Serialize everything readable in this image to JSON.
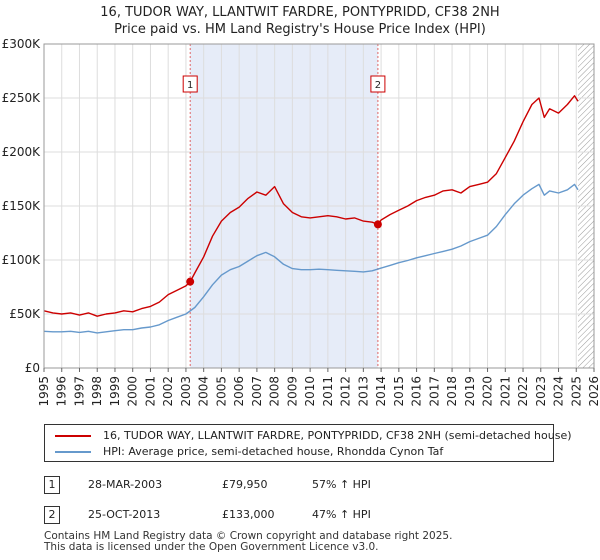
{
  "chart_data": {
    "type": "line",
    "title": "16, TUDOR WAY, LLANTWIT FARDRE, PONTYPRIDD, CF38 2NH",
    "subtitle": "Price paid vs. HM Land Registry's House Price Index (HPI)",
    "xlabel": "",
    "ylabel": "",
    "xlim": [
      1995,
      2026
    ],
    "ylim": [
      0,
      300000
    ],
    "x_ticks": [
      "1995",
      "1996",
      "1997",
      "1998",
      "1999",
      "2000",
      "2001",
      "2002",
      "2003",
      "2004",
      "2005",
      "2006",
      "2007",
      "2008",
      "2009",
      "2010",
      "2011",
      "2012",
      "2013",
      "2014",
      "2015",
      "2016",
      "2017",
      "2018",
      "2019",
      "2020",
      "2021",
      "2022",
      "2023",
      "2024",
      "2025",
      "2026"
    ],
    "y_ticks": [
      {
        "value": 0,
        "label": "£0"
      },
      {
        "value": 50000,
        "label": "£50K"
      },
      {
        "value": 100000,
        "label": "£100K"
      },
      {
        "value": 150000,
        "label": "£150K"
      },
      {
        "value": 200000,
        "label": "£200K"
      },
      {
        "value": 250000,
        "label": "£250K"
      },
      {
        "value": 300000,
        "label": "£300K"
      }
    ],
    "grid": true,
    "shaded_period": [
      2003.24,
      2013.82
    ],
    "future_hatch_from": 2025.1,
    "series": [
      {
        "name": "16, TUDOR WAY, LLANTWIT FARDRE, PONTYPRIDD, CF38 2NH (semi-detached house)",
        "color": "#cc0000",
        "x": [
          1995,
          1995.5,
          1996,
          1996.5,
          1997,
          1997.5,
          1998,
          1998.5,
          1999,
          1999.5,
          2000,
          2000.5,
          2001,
          2001.5,
          2002,
          2002.5,
          2003,
          2003.24,
          2003.5,
          2004,
          2004.5,
          2005,
          2005.5,
          2006,
          2006.5,
          2007,
          2007.5,
          2008,
          2008.5,
          2009,
          2009.5,
          2010,
          2010.5,
          2011,
          2011.5,
          2012,
          2012.5,
          2013,
          2013.5,
          2013.82,
          2014,
          2014.5,
          2015,
          2015.5,
          2016,
          2016.5,
          2017,
          2017.5,
          2018,
          2018.5,
          2019,
          2019.5,
          2020,
          2020.5,
          2021,
          2021.5,
          2022,
          2022.5,
          2022.9,
          2023.2,
          2023.5,
          2024,
          2024.5,
          2024.9,
          2025.1
        ],
        "values": [
          53000,
          51000,
          50000,
          51000,
          49000,
          51000,
          48000,
          50000,
          51000,
          53000,
          52000,
          55000,
          57000,
          61000,
          68000,
          72000,
          76000,
          79950,
          88000,
          103000,
          122000,
          136000,
          144000,
          149000,
          157000,
          163000,
          160000,
          168000,
          152000,
          144000,
          140000,
          139000,
          140000,
          141000,
          140000,
          138000,
          139000,
          136000,
          135000,
          133000,
          137000,
          142000,
          146000,
          150000,
          155000,
          158000,
          160000,
          164000,
          165000,
          162000,
          168000,
          170000,
          172000,
          180000,
          195000,
          210000,
          228000,
          244000,
          250000,
          232000,
          240000,
          236000,
          244000,
          252000,
          247000
        ]
      },
      {
        "name": "HPI: Average price, semi-detached house, Rhondda Cynon Taf",
        "color": "#6699cc",
        "x": [
          1995,
          1995.5,
          1996,
          1996.5,
          1997,
          1997.5,
          1998,
          1998.5,
          1999,
          1999.5,
          2000,
          2000.5,
          2001,
          2001.5,
          2002,
          2002.5,
          2003,
          2003.5,
          2004,
          2004.5,
          2005,
          2005.5,
          2006,
          2006.5,
          2007,
          2007.5,
          2008,
          2008.5,
          2009,
          2009.5,
          2010,
          2010.5,
          2011,
          2011.5,
          2012,
          2012.5,
          2013,
          2013.5,
          2014,
          2014.5,
          2015,
          2015.5,
          2016,
          2016.5,
          2017,
          2017.5,
          2018,
          2018.5,
          2019,
          2019.5,
          2020,
          2020.5,
          2021,
          2021.5,
          2022,
          2022.5,
          2022.9,
          2023.2,
          2023.5,
          2024,
          2024.5,
          2024.9,
          2025.1
        ],
        "values": [
          34000,
          33500,
          33500,
          34000,
          33000,
          34000,
          32500,
          33500,
          34500,
          35500,
          35500,
          37000,
          38000,
          40000,
          44000,
          47000,
          50000,
          56000,
          66000,
          77000,
          86000,
          91000,
          94000,
          99000,
          104000,
          107000,
          103000,
          96000,
          92000,
          91000,
          91000,
          91500,
          91000,
          90500,
          90000,
          89500,
          89000,
          90000,
          92500,
          95000,
          97500,
          99500,
          102000,
          104000,
          106000,
          108000,
          110000,
          113000,
          117000,
          120000,
          123000,
          131000,
          142000,
          152000,
          160000,
          166000,
          170000,
          160000,
          164000,
          162000,
          165000,
          170000,
          165000
        ]
      }
    ],
    "annotations": [
      {
        "label": "1",
        "x": 2003.24,
        "value": 79950
      },
      {
        "label": "2",
        "x": 2013.82,
        "value": 133000
      }
    ]
  },
  "legend": {
    "property": "16, TUDOR WAY, LLANTWIT FARDRE, PONTYPRIDD, CF38 2NH (semi-detached house)",
    "hpi": "HPI: Average price, semi-detached house, Rhondda Cynon Taf"
  },
  "transactions": [
    {
      "num": "1",
      "date": "28-MAR-2003",
      "price": "£79,950",
      "hpi": "57% ↑ HPI"
    },
    {
      "num": "2",
      "date": "25-OCT-2013",
      "price": "£133,000",
      "hpi": "47% ↑ HPI"
    }
  ],
  "footer": {
    "line1": "Contains HM Land Registry data © Crown copyright and database right 2025.",
    "line2": "This data is licensed under the Open Government Licence v3.0."
  }
}
